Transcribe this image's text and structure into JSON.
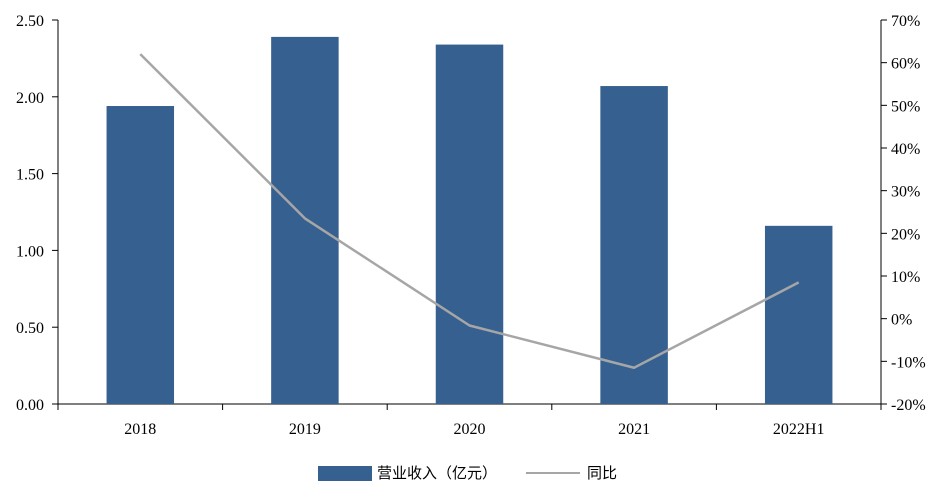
{
  "chart_data": {
    "type": "bar",
    "categories": [
      "2018",
      "2019",
      "2020",
      "2021",
      "2022H1"
    ],
    "series": [
      {
        "name": "营业收入（亿元）",
        "type": "bar",
        "axis": "left",
        "color": "#36608f",
        "values": [
          1.94,
          2.39,
          2.34,
          2.07,
          1.16
        ]
      },
      {
        "name": "同比",
        "type": "line",
        "axis": "right",
        "color": "#a6a6a6",
        "values": [
          62,
          23.5,
          -1.6,
          -11.5,
          8.5
        ]
      }
    ],
    "y_left": {
      "lim": [
        0,
        2.5
      ],
      "ticks": [
        0,
        0.5,
        1.0,
        1.5,
        2.0,
        2.5
      ],
      "tick_labels": [
        "0.00",
        "0.50",
        "1.00",
        "1.50",
        "2.00",
        "2.50"
      ]
    },
    "y_right": {
      "lim": [
        -20,
        70
      ],
      "ticks": [
        -20,
        -10,
        0,
        10,
        20,
        30,
        40,
        50,
        60,
        70
      ],
      "tick_labels": [
        "-20%",
        "-10%",
        "0%",
        "10%",
        "20%",
        "30%",
        "40%",
        "50%",
        "60%",
        "70%"
      ]
    },
    "grid": false,
    "legend_position": "bottom-center"
  }
}
